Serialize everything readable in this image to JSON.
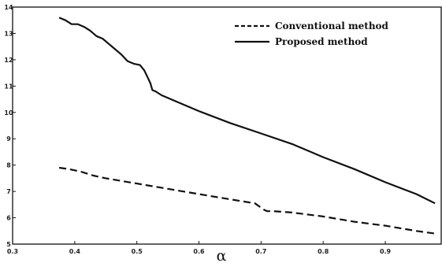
{
  "chart_data": {
    "type": "line",
    "title": "",
    "xlabel": "α",
    "ylabel": "",
    "xlim": [
      0.3,
      0.99
    ],
    "ylim": [
      5,
      14
    ],
    "grid": false,
    "legend_position": "top-right",
    "x_ticks": [
      "0.3",
      "0.4",
      "0.5",
      "0.6",
      "0.7",
      "0.8",
      "0.9"
    ],
    "y_ticks": [
      "5",
      "6",
      "7",
      "8",
      "9",
      "10",
      "11",
      "12",
      "13",
      "14"
    ],
    "series": [
      {
        "name": "Conventional method",
        "style": "dashed",
        "color": "#111111",
        "x": [
          0.375,
          0.39,
          0.41,
          0.43,
          0.45,
          0.5,
          0.55,
          0.6,
          0.65,
          0.69,
          0.705,
          0.71,
          0.72,
          0.75,
          0.8,
          0.85,
          0.9,
          0.95,
          0.98
        ],
        "y": [
          7.9,
          7.85,
          7.75,
          7.6,
          7.5,
          7.3,
          7.1,
          6.9,
          6.7,
          6.55,
          6.3,
          6.25,
          6.25,
          6.2,
          6.05,
          5.85,
          5.7,
          5.5,
          5.4
        ]
      },
      {
        "name": "Proposed method",
        "style": "solid",
        "color": "#111111",
        "x": [
          0.375,
          0.385,
          0.395,
          0.405,
          0.415,
          0.425,
          0.435,
          0.445,
          0.455,
          0.465,
          0.475,
          0.485,
          0.495,
          0.505,
          0.512,
          0.518,
          0.522,
          0.525,
          0.53,
          0.54,
          0.55,
          0.6,
          0.65,
          0.7,
          0.75,
          0.8,
          0.85,
          0.9,
          0.95,
          0.98
        ],
        "y": [
          13.6,
          13.5,
          13.35,
          13.35,
          13.25,
          13.1,
          12.9,
          12.8,
          12.6,
          12.4,
          12.2,
          11.95,
          11.85,
          11.8,
          11.6,
          11.3,
          11.1,
          10.85,
          10.8,
          10.65,
          10.55,
          10.05,
          9.6,
          9.2,
          8.8,
          8.3,
          7.85,
          7.35,
          6.9,
          6.55
        ]
      }
    ]
  }
}
